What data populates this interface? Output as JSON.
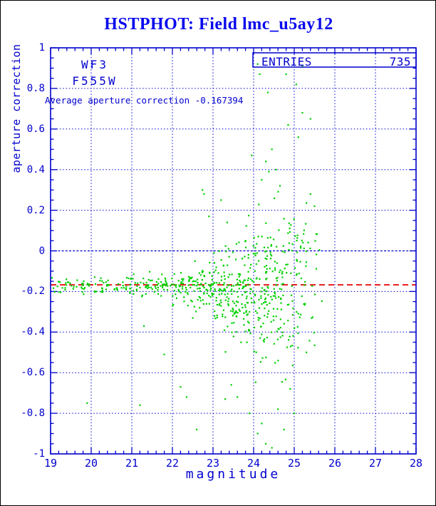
{
  "title": "HSTPHOT: Field lmc_u5ay12",
  "palette": {
    "title_blue": "#0808ee",
    "blue": "#0000cd",
    "green": "#00d000",
    "red": "#e60000",
    "frame_border": "#000000",
    "background": "#ffffff"
  },
  "chart_data": {
    "type": "scatter",
    "xlabel": "magnitude",
    "ylabel": "aperture correction",
    "detector_label": "WF3",
    "filter_label": "F555W",
    "avg_annotation": "Average aperture correction -0.167394",
    "legend_box": {
      "label": "ENTRIES",
      "value": "735"
    },
    "xlim": [
      19,
      28
    ],
    "ylim": [
      -1,
      1
    ],
    "x_major_ticks": [
      19,
      20,
      21,
      22,
      23,
      24,
      25,
      26,
      27,
      28
    ],
    "x_tick_labels": [
      "19",
      "20",
      "21",
      "22",
      "23",
      "24",
      "25",
      "26",
      "27",
      "28"
    ],
    "x_minor_step": 0.2,
    "y_major_ticks": [
      -1,
      -0.8,
      -0.6,
      -0.4,
      -0.2,
      0,
      0.2,
      0.4,
      0.6,
      0.8,
      1
    ],
    "y_tick_labels": [
      "-1",
      "-0.8",
      "-0.6",
      "-0.4",
      "-0.2",
      "0",
      "0.2",
      "0.4",
      "0.6",
      "0.8",
      "1"
    ],
    "y_minor_step": 0.05,
    "grid": {
      "style": "dotted",
      "on": true
    },
    "average_line": {
      "value": -0.167394,
      "style": "dashed"
    },
    "marker": {
      "shape": "square",
      "size": 2.2
    },
    "n_points": 735,
    "seed": 7,
    "point_bands": [
      {
        "x_min": 19.03,
        "x_max": 19.5,
        "count": 18,
        "y_mean": -0.175,
        "y_sigma": 0.018
      },
      {
        "x_min": 19.5,
        "x_max": 20.0,
        "count": 20,
        "y_mean": -0.175,
        "y_sigma": 0.018
      },
      {
        "x_min": 20.0,
        "x_max": 20.5,
        "count": 22,
        "y_mean": -0.172,
        "y_sigma": 0.02
      },
      {
        "x_min": 20.5,
        "x_max": 21.0,
        "count": 25,
        "y_mean": -0.173,
        "y_sigma": 0.022
      },
      {
        "x_min": 21.0,
        "x_max": 21.5,
        "count": 30,
        "y_mean": -0.17,
        "y_sigma": 0.026
      },
      {
        "x_min": 21.5,
        "x_max": 22.0,
        "count": 34,
        "y_mean": -0.17,
        "y_sigma": 0.03
      },
      {
        "x_min": 22.0,
        "x_max": 22.5,
        "count": 48,
        "y_mean": -0.175,
        "y_sigma": 0.045
      },
      {
        "x_min": 22.5,
        "x_max": 23.0,
        "count": 66,
        "y_mean": -0.18,
        "y_sigma": 0.06
      },
      {
        "x_min": 23.0,
        "x_max": 23.5,
        "count": 86,
        "y_mean": -0.19,
        "y_sigma": 0.095
      },
      {
        "x_min": 23.5,
        "x_max": 24.0,
        "count": 100,
        "y_mean": -0.2,
        "y_sigma": 0.13
      },
      {
        "x_min": 24.0,
        "x_max": 24.5,
        "count": 104,
        "y_mean": -0.21,
        "y_sigma": 0.17
      },
      {
        "x_min": 24.5,
        "x_max": 25.0,
        "count": 84,
        "y_mean": -0.2,
        "y_sigma": 0.19
      },
      {
        "x_min": 25.0,
        "x_max": 25.3,
        "count": 38,
        "y_mean": -0.12,
        "y_sigma": 0.2
      },
      {
        "x_min": 25.3,
        "x_max": 25.7,
        "count": 17,
        "y_mean": -0.1,
        "y_sigma": 0.22
      }
    ],
    "outlier_points": [
      [
        24.1,
        0.92
      ],
      [
        24.15,
        0.87
      ],
      [
        24.8,
        0.87
      ],
      [
        25.2,
        0.91
      ],
      [
        25.05,
        0.82
      ],
      [
        24.35,
        0.78
      ],
      [
        25.2,
        0.68
      ],
      [
        25.4,
        0.65
      ],
      [
        24.85,
        0.62
      ],
      [
        25.1,
        0.56
      ],
      [
        24.45,
        0.5
      ],
      [
        23.95,
        0.47
      ],
      [
        24.3,
        0.44
      ],
      [
        24.55,
        0.4
      ],
      [
        24.2,
        0.35
      ],
      [
        24.65,
        0.32
      ],
      [
        25.4,
        0.28
      ],
      [
        25.5,
        0.22
      ],
      [
        22.74,
        0.3
      ],
      [
        22.78,
        0.28
      ],
      [
        23.2,
        0.25
      ],
      [
        23.35,
        0.14
      ],
      [
        22.9,
        0.17
      ],
      [
        19.9,
        -0.75
      ],
      [
        21.2,
        -0.76
      ],
      [
        21.3,
        -0.37
      ],
      [
        21.8,
        -0.51
      ],
      [
        22.2,
        -0.67
      ],
      [
        22.35,
        -0.72
      ],
      [
        22.6,
        -0.88
      ],
      [
        23.3,
        -0.73
      ],
      [
        23.45,
        -0.66
      ],
      [
        24.1,
        -0.9
      ],
      [
        24.3,
        -0.95
      ],
      [
        24.45,
        -0.97
      ],
      [
        24.2,
        -0.85
      ],
      [
        24.6,
        -0.78
      ],
      [
        24.75,
        -0.88
      ],
      [
        25.0,
        -0.8
      ],
      [
        24.9,
        -0.68
      ],
      [
        25.3,
        -0.5
      ],
      [
        23.9,
        -0.8
      ],
      [
        23.6,
        -0.72
      ]
    ]
  }
}
